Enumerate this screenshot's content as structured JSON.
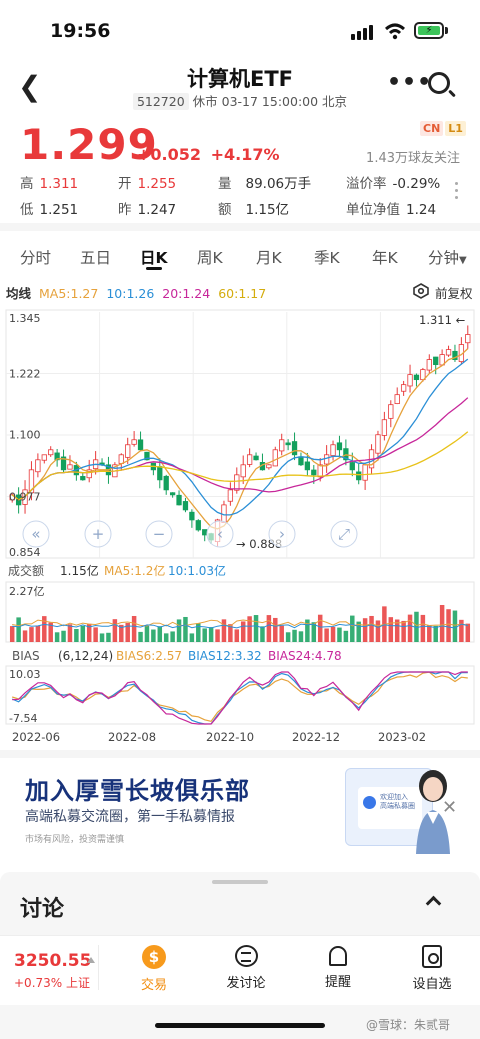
{
  "status": {
    "time": "19:56",
    "battery_icon": "battery-charging-icon"
  },
  "header": {
    "title": "计算机ETF",
    "code": "512720",
    "market_status": "休市 03-17 15:00:00 北京"
  },
  "quote": {
    "price": "1.299",
    "change": "+0.052",
    "change_pct": "+4.17%",
    "badges": [
      "CN",
      "L1"
    ],
    "followers": "1.43万球友关注",
    "price_color": "#e8393a"
  },
  "stats": {
    "high_label": "高",
    "high": "1.311",
    "open_label": "开",
    "open": "1.255",
    "volume_label": "量",
    "volume": "89.06万手",
    "premium_label": "溢价率",
    "premium": "-0.29%",
    "low_label": "低",
    "low": "1.251",
    "prev_label": "昨",
    "prev": "1.247",
    "amount_label": "额",
    "amount": "1.15亿",
    "nav_label": "单位净值",
    "nav": "1.24"
  },
  "tabs": [
    "分时",
    "五日",
    "日K",
    "周K",
    "月K",
    "季K",
    "年K",
    "分钟"
  ],
  "active_tab": "日K",
  "ma_legend": {
    "label": "均线",
    "ma5": "MA5:1.27",
    "ma10": "10:1.26",
    "ma20": "20:1.24",
    "ma60": "60:1.17",
    "adjust": "前复权"
  },
  "volume_legend": {
    "label": "成交额",
    "value": "1.15亿",
    "ma5": "MA5:1.2亿",
    "ma10": "10:1.03亿",
    "max": "2.27亿"
  },
  "bias_legend": {
    "label": "BIAS",
    "params": "(6,12,24)",
    "b6": "BIAS6:2.57",
    "b12": "BIAS12:3.32",
    "b24": "BIAS24:4.78",
    "top": "10.03",
    "bottom": "-7.54"
  },
  "chart_data": {
    "type": "candlestick",
    "y_ticks": [
      "1.345",
      "1.222",
      "1.100",
      "0.977",
      "0.854"
    ],
    "ylim": [
      0.854,
      1.345
    ],
    "x_ticks": [
      "2022-06",
      "2022-08",
      "2022-10",
      "2022-12",
      "2023-02"
    ],
    "max_label": "1.311",
    "min_label": "0.888",
    "close_series": [
      0.98,
      0.96,
      0.99,
      1.03,
      1.05,
      1.06,
      1.07,
      1.05,
      1.03,
      1.04,
      1.02,
      1.01,
      1.03,
      1.05,
      1.04,
      1.02,
      1.04,
      1.06,
      1.08,
      1.09,
      1.07,
      1.05,
      1.03,
      1.01,
      0.99,
      0.98,
      0.96,
      0.95,
      0.93,
      0.91,
      0.9,
      0.89,
      0.93,
      0.96,
      0.99,
      1.02,
      1.04,
      1.06,
      1.05,
      1.03,
      1.04,
      1.07,
      1.09,
      1.08,
      1.06,
      1.04,
      1.03,
      1.02,
      1.04,
      1.06,
      1.08,
      1.07,
      1.05,
      1.03,
      1.01,
      1.04,
      1.07,
      1.1,
      1.13,
      1.16,
      1.18,
      1.2,
      1.22,
      1.21,
      1.23,
      1.25,
      1.24,
      1.26,
      1.27,
      1.25,
      1.28,
      1.3
    ],
    "series_colors": {
      "ma5": "#e6a23c",
      "ma10": "#2b8fd6",
      "ma20": "#c7279a",
      "ma60": "#e8c21a",
      "up": "#e8393a",
      "down": "#13a05d"
    }
  },
  "promo": {
    "title": "加入厚雪长坡俱乐部",
    "subtitle": "高端私募交流圈，第一手私募情报",
    "note": "市场有风险，投资需谨慎",
    "card_text": "欢迎加入\n高端私募圈"
  },
  "discuss": {
    "title": "讨论"
  },
  "bottom": {
    "index_value": "3250.55",
    "index_change": "+0.73% 上证",
    "trade": "交易",
    "post": "发讨论",
    "remind": "提醒",
    "favorite": "设自选"
  },
  "watermark": "@雪球：朱贰哥"
}
